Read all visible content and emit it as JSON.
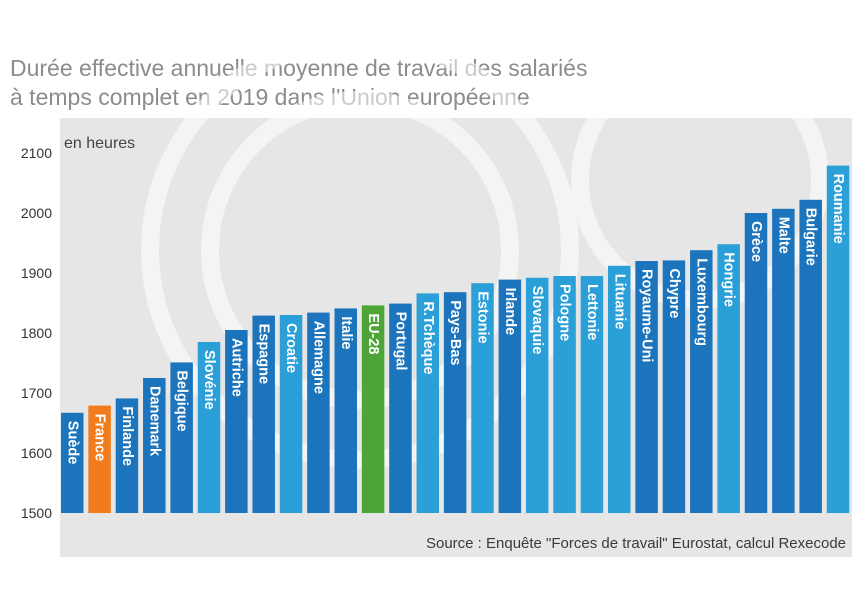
{
  "colors": {
    "bar_default": "#1c75bc",
    "bar_alt": "#2a9fd8",
    "bar_france": "#f07c1e",
    "bar_eu": "#4ea537",
    "background_panel": "#e6e6e6"
  },
  "chart_data": {
    "type": "bar",
    "title": "Durée effective annuelle moyenne de travail des salariés à temps complet en 2019 dans l'Union européenne",
    "title_lines": [
      "Durée effective annuelle moyenne de travail des salariés",
      "à temps complet en 2019 dans l'Union européenne"
    ],
    "ylabel": "en heures",
    "xlabel": "",
    "source": "Source : Enquête \"Forces de travail\" Eurostat, calcul Rexecode",
    "ylim": [
      1500,
      2100
    ],
    "yticks": [
      1500,
      1600,
      1700,
      1800,
      1900,
      2000,
      2100
    ],
    "grid": false,
    "categories": [
      "Suède",
      "France",
      "Finlande",
      "Danemark",
      "Belgique",
      "Slovénie",
      "Autriche",
      "Espagne",
      "Croatie",
      "Allemagne",
      "Italie",
      "EU-28",
      "Portugal",
      "R.Tchèque",
      "Pays-Bas",
      "Estonie",
      "Irlande",
      "Slovaquie",
      "Pologne",
      "Lettonie",
      "Lituanie",
      "Royaume-Uni",
      "Chypre",
      "Luxembourg",
      "Hongrie",
      "Grèce",
      "Malte",
      "Bulgarie",
      "Roumanie"
    ],
    "values": [
      1667,
      1679,
      1691,
      1725,
      1751,
      1785,
      1805,
      1829,
      1830,
      1834,
      1841,
      1846,
      1849,
      1866,
      1868,
      1883,
      1889,
      1892,
      1895,
      1895,
      1912,
      1920,
      1921,
      1938,
      1948,
      2000,
      2007,
      2022,
      2079
    ],
    "bar_colors": [
      "#1c75bc",
      "#f07c1e",
      "#1c75bc",
      "#1c75bc",
      "#1c75bc",
      "#2a9fd8",
      "#1c75bc",
      "#1c75bc",
      "#2a9fd8",
      "#1c75bc",
      "#1c75bc",
      "#4ea537",
      "#1c75bc",
      "#2a9fd8",
      "#1c75bc",
      "#2a9fd8",
      "#1c75bc",
      "#2a9fd8",
      "#2a9fd8",
      "#2a9fd8",
      "#2a9fd8",
      "#1c75bc",
      "#1c75bc",
      "#1c75bc",
      "#2a9fd8",
      "#1c75bc",
      "#1c75bc",
      "#1c75bc",
      "#2a9fd8"
    ]
  }
}
